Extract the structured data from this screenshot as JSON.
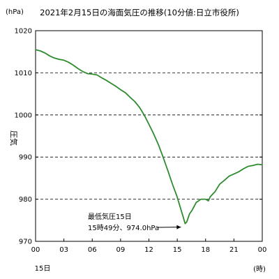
{
  "chart_data": {
    "type": "line",
    "title": "2021年2月15日の海面気圧の推移(10分値:日立市役所)",
    "y_unit": "(hPa)",
    "ylabel": "圧気",
    "xlabel": "(時)",
    "x_sub_label": "15日",
    "ylim": [
      970,
      1020
    ],
    "y_ticks": [
      "970",
      "980",
      "990",
      "1000",
      "1010",
      "1020"
    ],
    "y_tick_values": [
      970,
      980,
      990,
      1000,
      1010,
      1020
    ],
    "xlim": [
      0,
      24
    ],
    "x_ticks": [
      "00",
      "03",
      "06",
      "09",
      "12",
      "15",
      "18",
      "21",
      "00"
    ],
    "x_tick_values": [
      0,
      3,
      6,
      9,
      12,
      15,
      18,
      21,
      24
    ],
    "grid": {
      "horizontal_dashed": [
        980,
        990,
        1000,
        1010
      ]
    },
    "line_color": "#2e8b2e",
    "series": [
      {
        "x": [
          0.0,
          0.5,
          1.0,
          1.5,
          2.0,
          2.5,
          3.0,
          3.5,
          4.0,
          4.5,
          5.0,
          5.5,
          6.0,
          6.5,
          7.0,
          7.5,
          8.0,
          8.5,
          9.0,
          9.5,
          10.0,
          10.5,
          11.0,
          11.5,
          12.0,
          12.5,
          13.0,
          13.5,
          14.0,
          14.5,
          15.0,
          15.3,
          15.6,
          15.83,
          16.0,
          16.3,
          16.6,
          17.0,
          17.5,
          18.0,
          18.3,
          18.5,
          19.0,
          19.5,
          20.0,
          20.5,
          21.0,
          21.5,
          22.0,
          22.5,
          23.0,
          23.5,
          24.0
        ],
        "y": [
          1015.5,
          1015.2,
          1014.7,
          1014.0,
          1013.5,
          1013.2,
          1013.0,
          1012.5,
          1011.8,
          1011.0,
          1010.3,
          1009.8,
          1009.7,
          1009.5,
          1008.8,
          1008.2,
          1007.5,
          1006.8,
          1006.0,
          1005.3,
          1004.2,
          1003.2,
          1001.8,
          1000.0,
          997.8,
          995.5,
          993.0,
          990.0,
          986.8,
          983.5,
          980.5,
          978.2,
          976.0,
          974.2,
          974.6,
          976.5,
          977.5,
          979.2,
          980.0,
          980.0,
          979.6,
          980.6,
          981.8,
          983.6,
          984.5,
          985.5,
          986.0,
          986.5,
          987.2,
          987.8,
          988.0,
          988.3,
          988.2
        ]
      }
    ],
    "annotation": {
      "lines": [
        "最低気圧15日",
        "15時49分、974.0hPa"
      ],
      "x": 15.83,
      "y": 974.2
    }
  }
}
